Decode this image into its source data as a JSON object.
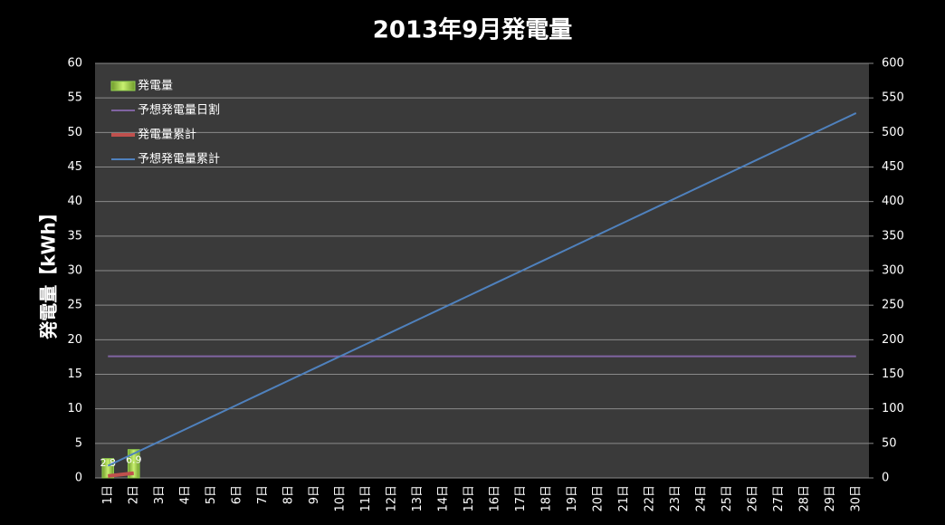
{
  "chart_data": {
    "type": "combo",
    "title": "2013年9月発電量",
    "ylabel": "発電量【kWh】",
    "categories": [
      "1日",
      "2日",
      "3日",
      "4日",
      "5日",
      "6日",
      "7日",
      "8日",
      "9日",
      "10日",
      "11日",
      "12日",
      "13日",
      "14日",
      "15日",
      "16日",
      "17日",
      "18日",
      "19日",
      "20日",
      "21日",
      "22日",
      "23日",
      "24日",
      "25日",
      "26日",
      "27日",
      "28日",
      "29日",
      "30日"
    ],
    "ylim": [
      0,
      60
    ],
    "yticks": [
      0,
      5,
      10,
      15,
      20,
      25,
      30,
      35,
      40,
      45,
      50,
      55,
      60
    ],
    "y2lim": [
      0,
      600
    ],
    "y2ticks": [
      0,
      50,
      100,
      150,
      200,
      250,
      300,
      350,
      400,
      450,
      500,
      550,
      600
    ],
    "grid": true,
    "legend": "top-left",
    "series": [
      {
        "name": "発電量",
        "type": "bar",
        "color": "#92d050",
        "values": [
          2.8,
          4.1,
          null,
          null,
          null,
          null,
          null,
          null,
          null,
          null,
          null,
          null,
          null,
          null,
          null,
          null,
          null,
          null,
          null,
          null,
          null,
          null,
          null,
          null,
          null,
          null,
          null,
          null,
          null,
          null
        ]
      },
      {
        "name": "予想発電量日割",
        "type": "line",
        "color": "#8064a2",
        "values": [
          17.6,
          17.6,
          17.6,
          17.6,
          17.6,
          17.6,
          17.6,
          17.6,
          17.6,
          17.6,
          17.6,
          17.6,
          17.6,
          17.6,
          17.6,
          17.6,
          17.6,
          17.6,
          17.6,
          17.6,
          17.6,
          17.6,
          17.6,
          17.6,
          17.6,
          17.6,
          17.6,
          17.6,
          17.6,
          17.6
        ]
      },
      {
        "name": "発電量累計",
        "type": "line",
        "color": "#c0504d",
        "axis": "y2",
        "data_labels": true,
        "values": [
          2.8,
          6.9,
          null,
          null,
          null,
          null,
          null,
          null,
          null,
          null,
          null,
          null,
          null,
          null,
          null,
          null,
          null,
          null,
          null,
          null,
          null,
          null,
          null,
          null,
          null,
          null,
          null,
          null,
          null,
          null
        ]
      },
      {
        "name": "予想発電量累計",
        "type": "line",
        "color": "#4f81bd",
        "axis": "y2",
        "values": [
          17.6,
          35.2,
          52.8,
          70.4,
          88,
          105.6,
          123.2,
          140.8,
          158.4,
          176,
          193.6,
          211.2,
          228.8,
          246.4,
          264,
          281.6,
          299.2,
          316.8,
          334.4,
          352,
          369.6,
          387.2,
          404.8,
          422.4,
          440,
          457.6,
          475.2,
          492.8,
          510.4,
          528
        ]
      }
    ]
  }
}
